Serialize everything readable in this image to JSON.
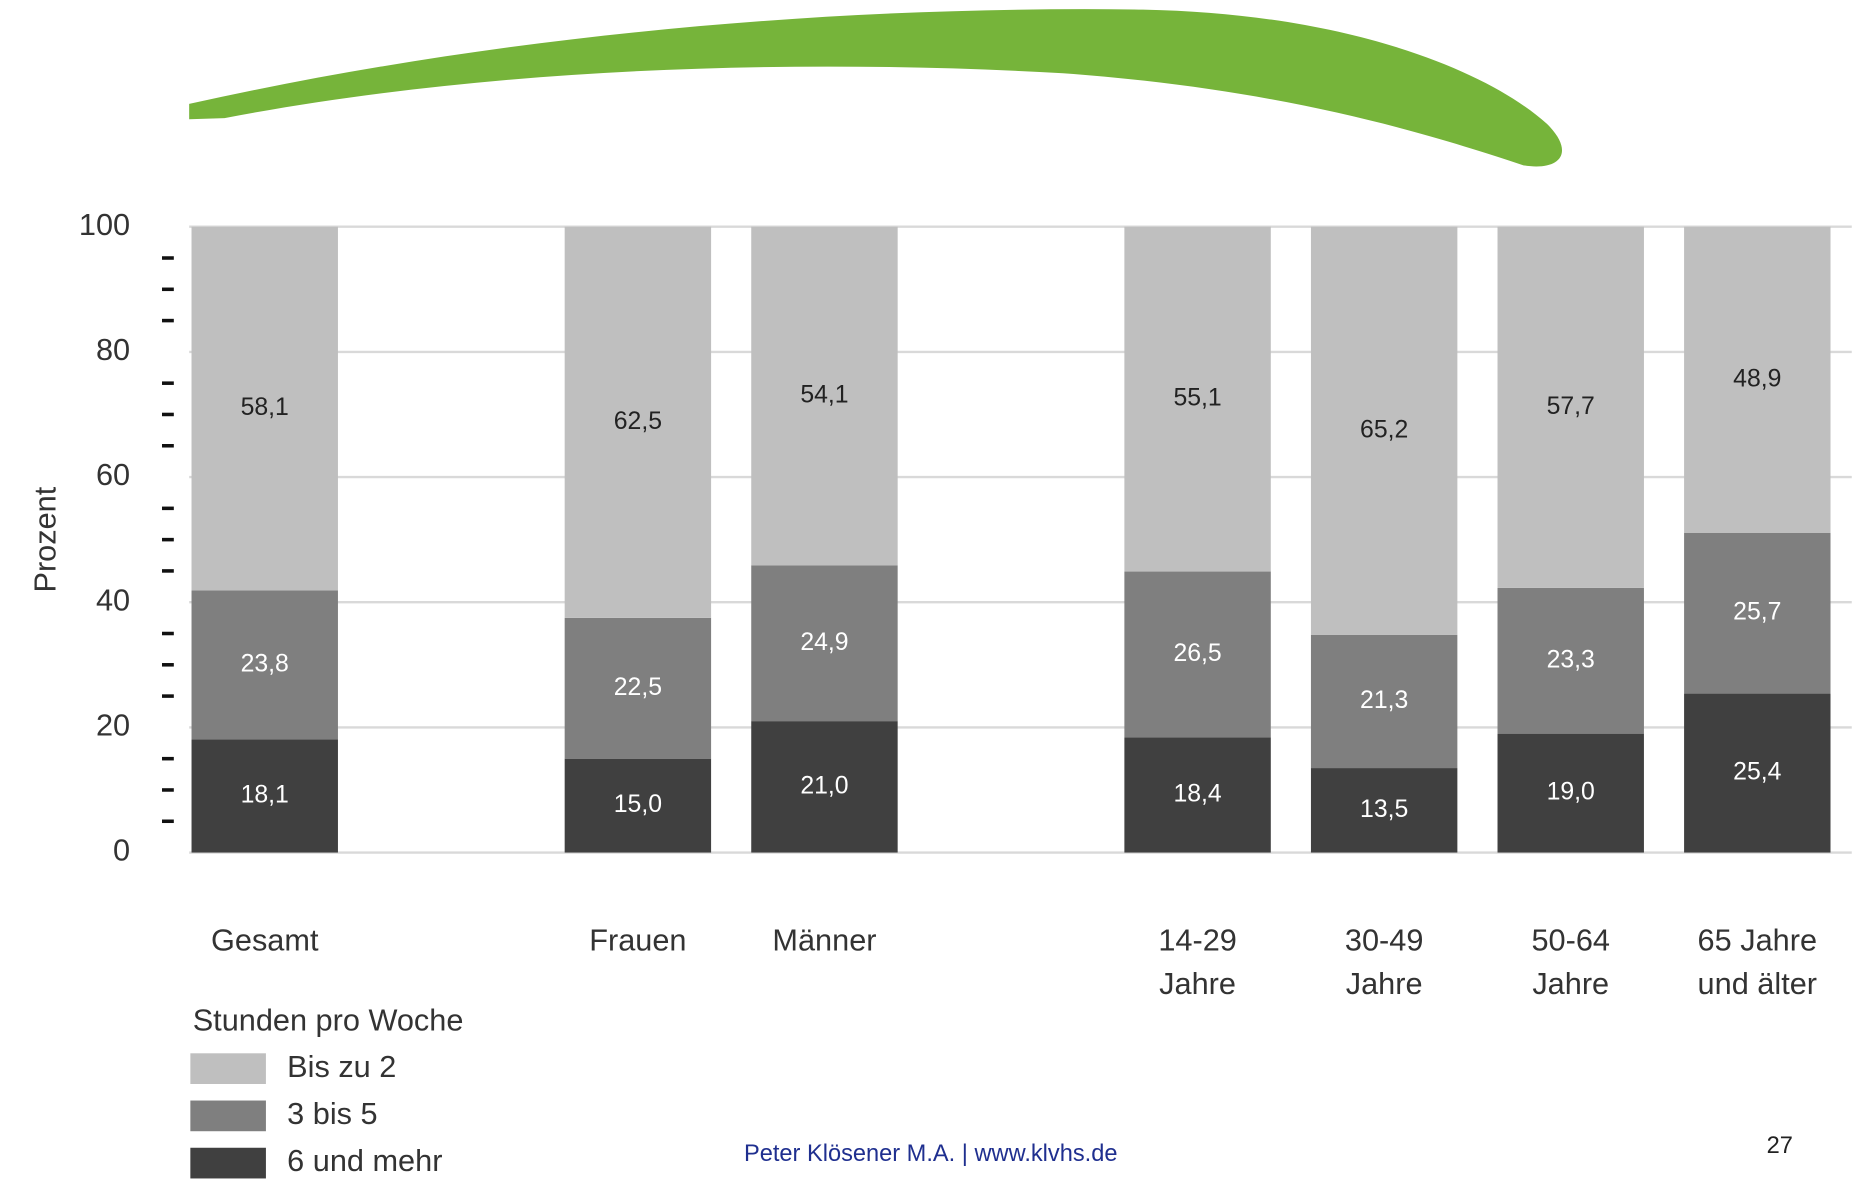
{
  "chart_data": {
    "type": "stacked_bar",
    "ylabel": "Prozent",
    "categories": [
      "Gesamt",
      null,
      "Frauen",
      "Männer",
      null,
      "14-29\nJahre",
      "30-49\nJahre",
      "50-64\nJahre",
      "65 Jahre\nund älter"
    ],
    "series": [
      {
        "name": "Bis zu 2",
        "color": "#bfbfbf",
        "values": [
          58.1,
          null,
          62.5,
          54.1,
          null,
          55.1,
          65.2,
          57.7,
          48.9
        ],
        "value_labels": [
          "58,1",
          null,
          "62,5",
          "54,1",
          null,
          "55,1",
          "65,2",
          "57,7",
          "48,9"
        ]
      },
      {
        "name": "3 bis 5",
        "color": "#7f7f7f",
        "values": [
          23.8,
          null,
          22.5,
          24.9,
          null,
          26.5,
          21.3,
          23.3,
          25.7
        ],
        "value_labels": [
          "23,8",
          null,
          "22,5",
          "24,9",
          null,
          "26,5",
          "21,3",
          "23,3",
          "25,7"
        ]
      },
      {
        "name": "6 und mehr",
        "color": "#404040",
        "values": [
          18.1,
          null,
          15.0,
          21.0,
          null,
          18.4,
          13.5,
          19.0,
          25.4
        ],
        "value_labels": [
          "18,1",
          null,
          "15,0",
          "21,0",
          null,
          "18,4",
          "13,5",
          "19,0",
          "25,4"
        ]
      }
    ],
    "ylim": [
      0,
      100
    ],
    "yticks": [
      0,
      20,
      40,
      60,
      80,
      100
    ],
    "yminorticks": [
      5,
      10,
      15,
      25,
      30,
      35,
      45,
      50,
      55,
      65,
      70,
      75,
      85,
      90,
      95
    ],
    "grid": true,
    "legend_title": "Stunden pro Woche",
    "legend": "bottom-left"
  },
  "footer": {
    "text": "Peter Klösener M.A. | www.klvhs.de",
    "page": "27"
  }
}
